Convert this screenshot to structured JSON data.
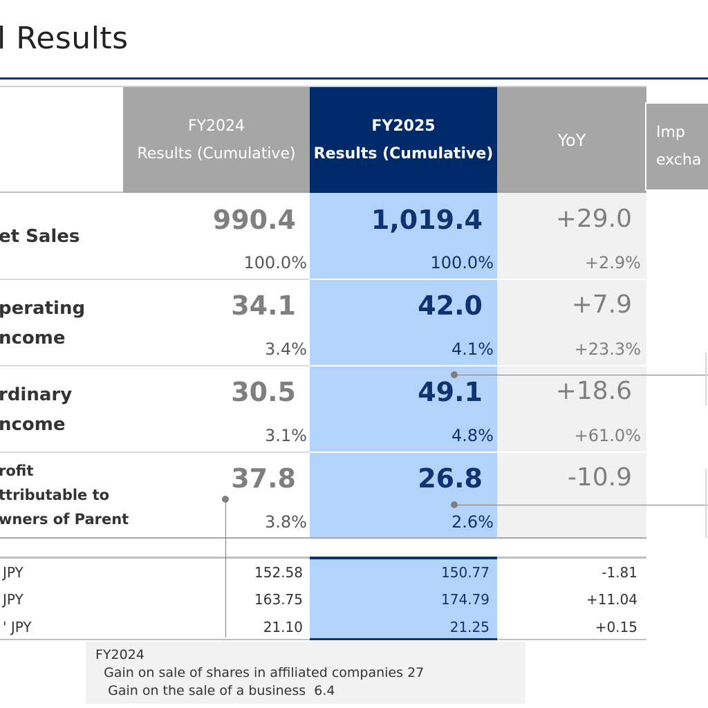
{
  "title": "l Results",
  "headers": {
    "fy24_line1": "FY2024",
    "fy24_line2": "Results (Cumulative)",
    "fy25_line1": "FY2025",
    "fy25_line2": "Results (Cumulative)",
    "yoy": "YoY",
    "imp_line1": "Imp",
    "imp_line2": "excha"
  },
  "rows": [
    {
      "label_lines": [
        "et Sales"
      ],
      "fy24": "990.4",
      "fy25": "1,019.4",
      "yoy": "+29.0",
      "fy24_pct": "100.0%",
      "fy25_pct": "100.0%",
      "yoy_pct": "+2.9%"
    },
    {
      "label_lines": [
        "perating",
        "ncome"
      ],
      "fy24": "34.1",
      "fy25": "42.0",
      "yoy": "+7.9",
      "fy24_pct": "3.4%",
      "fy25_pct": "4.1%",
      "yoy_pct": "+23.3%"
    },
    {
      "label_lines": [
        "rdinary",
        "ncome"
      ],
      "fy24": "30.5",
      "fy25": "49.1",
      "yoy": "+18.6",
      "fy24_pct": "3.1%",
      "fy25_pct": "4.8%",
      "yoy_pct": "+61.0%"
    },
    {
      "label_lines": [
        "rofit",
        "ttributable to",
        "wners of Parent"
      ],
      "fy24": "37.8",
      "fy25": "26.8",
      "yoy": "-10.9",
      "fy24_pct": "3.8%",
      "fy25_pct": "2.6%",
      "yoy_pct": ""
    }
  ],
  "fx_rows": [
    {
      "label": "JPY",
      "fy24": "152.58",
      "fy25": "150.77",
      "yoy": "-1.81"
    },
    {
      "label": "JPY",
      "fy24": "163.75",
      "fy25": "174.79",
      "yoy": "+11.04"
    },
    {
      "label": "' JPY",
      "fy24": "21.10",
      "fy25": "21.25",
      "yoy": "+0.15"
    }
  ],
  "note": {
    "heading": "FY2024",
    "line1": "  Gain on sale of shares in affiliated companies 27",
    "line2": "   Gain on the sale of a business  6.4"
  },
  "colors": {
    "navy": "#002b6b",
    "highlight_blue": "#b3d3fb",
    "gray_header": "#a6a6a6"
  }
}
